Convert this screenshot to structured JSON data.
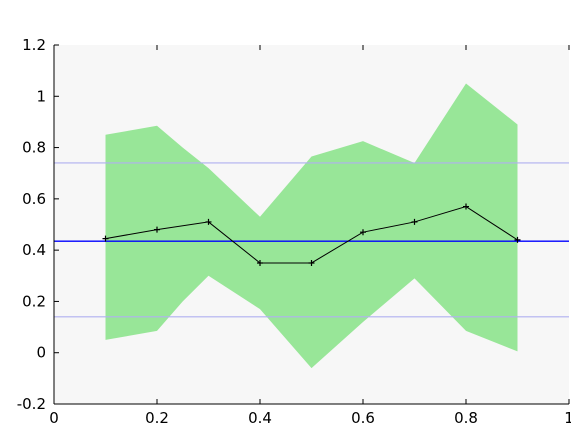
{
  "chart_data": {
    "type": "line",
    "title": "",
    "xlabel": "",
    "ylabel": "",
    "xlim": [
      0,
      1
    ],
    "ylim": [
      -0.2,
      1.2
    ],
    "xticks": [
      0,
      0.2,
      0.4,
      0.6,
      0.8,
      1
    ],
    "yticks": [
      -0.2,
      0,
      0.2,
      0.4,
      0.6,
      0.8,
      1,
      1.2
    ],
    "xtick_labels": [
      "0",
      "0.2",
      "0.4",
      "0.6",
      "0.8",
      "1"
    ],
    "ytick_labels": [
      "-0.2",
      "0",
      "0.2",
      "0.4",
      "0.6",
      "0.8",
      "1",
      "1.2"
    ],
    "grid": false,
    "legend": null,
    "band": {
      "x": [
        0.1,
        0.2,
        0.25,
        0.3,
        0.4,
        0.5,
        0.6,
        0.7,
        0.8,
        0.9
      ],
      "upper": [
        0.85,
        0.885,
        0.8,
        0.72,
        0.53,
        0.765,
        0.825,
        0.74,
        1.05,
        0.89
      ],
      "lower": [
        0.05,
        0.085,
        0.2,
        0.3,
        0.17,
        -0.06,
        0.12,
        0.29,
        0.085,
        0.005
      ],
      "color": "#98e698"
    },
    "series": [
      {
        "x": [
          0.1,
          0.2,
          0.3,
          0.4,
          0.5,
          0.6,
          0.7,
          0.8,
          0.9
        ],
        "values": [
          0.445,
          0.48,
          0.51,
          0.35,
          0.35,
          0.47,
          0.51,
          0.57,
          0.44
        ],
        "color": "#000000",
        "marker": "plus"
      }
    ],
    "hlines": [
      {
        "y": 0.435,
        "color": "#0000ff"
      },
      {
        "y": 0.74,
        "color": "#b0b0f0"
      },
      {
        "y": 0.14,
        "color": "#b0b0f0"
      }
    ],
    "plot_background": "#f7f7f7"
  }
}
